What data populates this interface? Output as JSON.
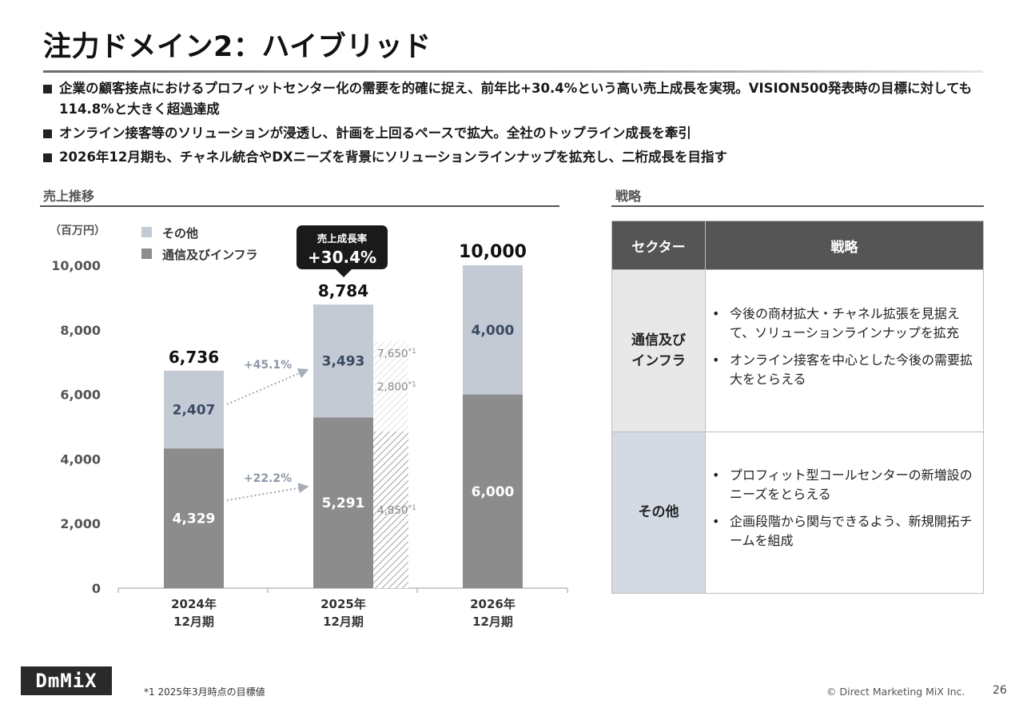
{
  "title": "注力ドメイン2：ハイブリッド",
  "bullets": [
    "企業の顧客接点におけるプロフィットセンター化の需要を的確に捉え、前年比+30.4%という高い売上成長を実現。VISION500発表時の目標に対しても114.8%と大きく超過達成",
    "オンライン接客等のソリューションが浸透し、計画を上回るペースで拡大。全社のトップライン成長を牽引",
    "2026年12月期も、チャネル統合やDXニーズを背景にソリューションラインナップを拡充し、二桁成長を目指す"
  ],
  "chart_section_title": "売上推移",
  "strategy_section_title": "戦略",
  "chart_data": {
    "type": "bar",
    "stacked": true,
    "unit_label": "（百万円）",
    "categories": [
      "2024年\n12月期",
      "2025年\n12月期",
      "2026年\n12月期"
    ],
    "series": [
      {
        "name": "通信及びインフラ",
        "values": [
          4329,
          5291,
          6000
        ],
        "color": "#8c8c8c"
      },
      {
        "name": "その他",
        "values": [
          2407,
          3493,
          4000
        ],
        "color": "#c3cad4"
      }
    ],
    "totals": [
      "6,736",
      "8,784",
      "10,000"
    ],
    "value_labels": {
      "infra": [
        "4,329",
        "5,291",
        "6,000"
      ],
      "other": [
        "2,407",
        "3,493",
        "4,000"
      ]
    },
    "ylim": [
      0,
      10000
    ],
    "yticks": [
      0,
      2000,
      4000,
      6000,
      8000,
      10000
    ],
    "ytick_labels": [
      "0",
      "2,000",
      "4,000",
      "6,000",
      "8,000",
      "10,000"
    ],
    "legend": [
      "その他",
      "通信及びインフラ"
    ],
    "target_2025": {
      "infra": 4850,
      "other": 2800,
      "total": 7650,
      "infra_label": "4,850",
      "other_label": "2,800",
      "total_label": "7,650",
      "marker": "*1"
    },
    "growth_other": "+45.1%",
    "growth_infra": "+22.2%",
    "callout_title": "売上成長率",
    "callout_value": "+30.4%"
  },
  "table": {
    "headers": [
      "セクター",
      "戦略"
    ],
    "rows": [
      {
        "sector": "通信及び\nインフラ",
        "items": [
          "今後の商材拡大・チャネル拡張を見据えて、ソリューションラインナップを拡充",
          "オンライン接客を中心とした今後の需要拡大をとらえる"
        ]
      },
      {
        "sector": "その他",
        "items": [
          "プロフィット型コールセンターの新増設のニーズをとらえる",
          "企画段階から関与できるよう、新規開拓チームを組成"
        ]
      }
    ]
  },
  "footnote": "*1  2025年3月時点の目標値",
  "copyright": "© Direct Marketing MiX Inc.",
  "page_number": "26",
  "logo_text": "DmMiX"
}
